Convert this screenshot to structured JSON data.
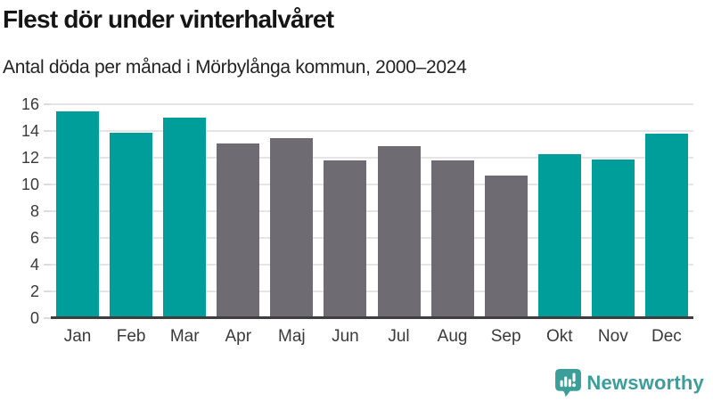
{
  "header": {
    "title": "Flest dör under vinterhalvåret",
    "subtitle": "Antal döda per månad i Mörbylånga kommun, 2000–2024"
  },
  "chart_data": {
    "type": "bar",
    "title": "Flest dör under vinterhalvåret",
    "subtitle": "Antal döda per månad i Mörbylånga kommun, 2000–2024",
    "categories": [
      "Jan",
      "Feb",
      "Mar",
      "Apr",
      "Maj",
      "Jun",
      "Jul",
      "Aug",
      "Sep",
      "Okt",
      "Nov",
      "Dec"
    ],
    "values": [
      15.5,
      13.9,
      15.0,
      13.1,
      13.5,
      11.8,
      12.9,
      11.8,
      10.7,
      12.3,
      11.9,
      13.8
    ],
    "groups": [
      "winter",
      "winter",
      "winter",
      "summer",
      "summer",
      "summer",
      "summer",
      "summer",
      "summer",
      "winter",
      "winter",
      "winter"
    ],
    "colors": {
      "winter": "#009e9a",
      "summer": "#6e6c72"
    },
    "xlabel": "",
    "ylabel": "",
    "ylim": [
      0,
      16
    ],
    "yticks": [
      0,
      2,
      4,
      6,
      8,
      10,
      12,
      14,
      16
    ],
    "grid": true,
    "legend": false
  },
  "branding": {
    "logo_text": "Newsworthy",
    "logo_color": "#3c9e9a"
  }
}
